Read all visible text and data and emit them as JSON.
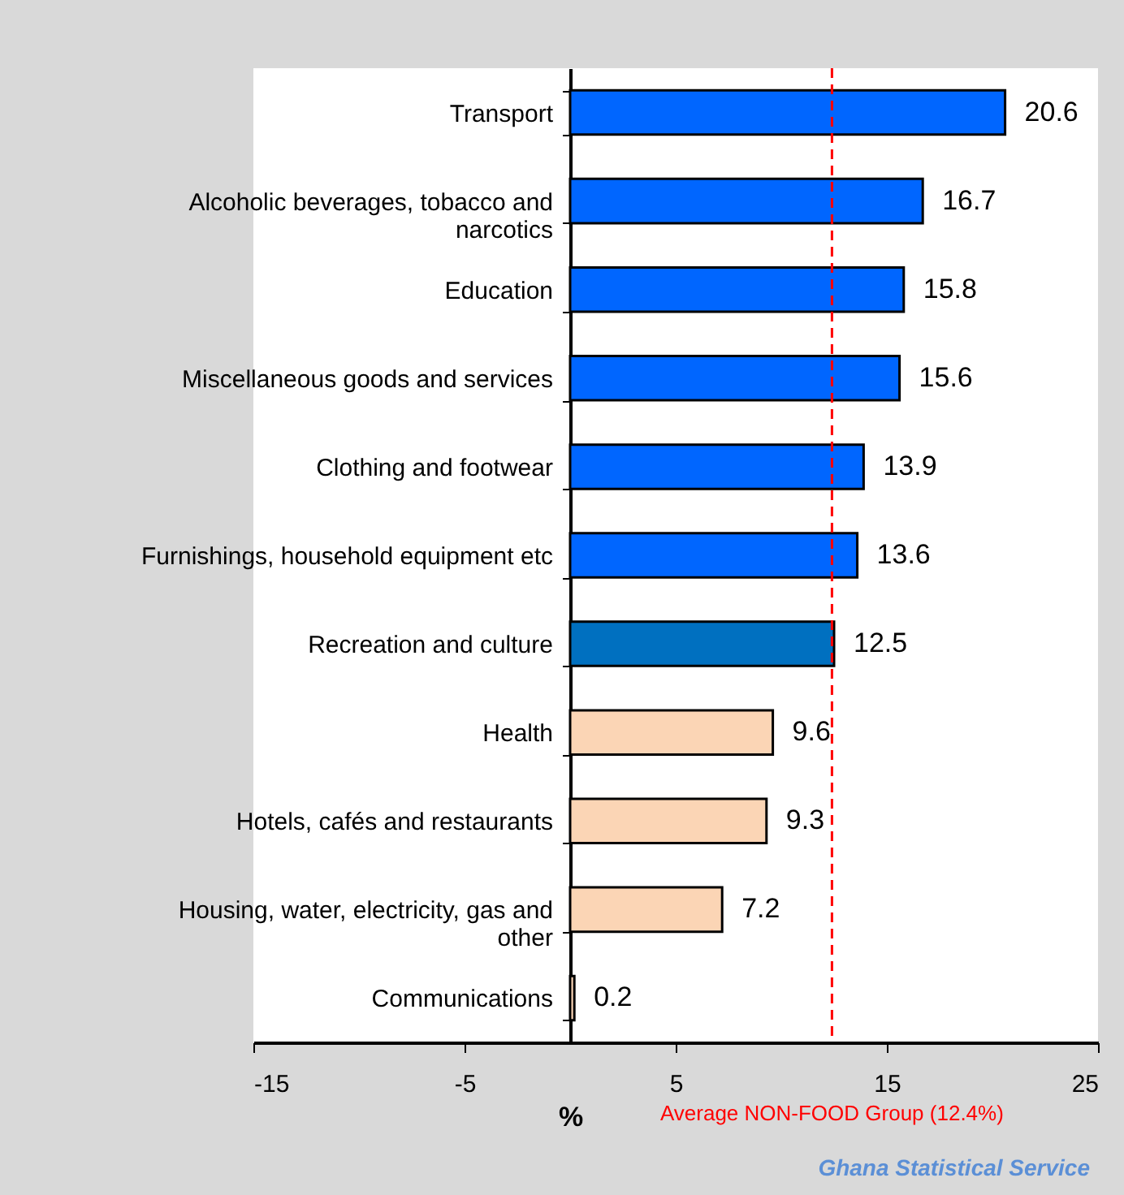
{
  "chart_data": {
    "type": "bar",
    "orientation": "horizontal",
    "categories": [
      "Transport",
      "Alcoholic beverages, tobacco and narcotics",
      "Education",
      "Miscellaneous goods and services",
      "Clothing and footwear",
      "Furnishings, household equipment etc",
      "Recreation and culture",
      "Health",
      "Hotels, cafés and restaurants",
      "Housing, water, electricity, gas and other",
      "Communications"
    ],
    "values": [
      20.6,
      16.7,
      15.8,
      15.6,
      13.9,
      13.6,
      12.5,
      9.6,
      9.3,
      7.2,
      0.2
    ],
    "colors": [
      "#0066ff",
      "#0066ff",
      "#0066ff",
      "#0066ff",
      "#0066ff",
      "#0066ff",
      "#0070c0",
      "#fbd5b5",
      "#fbd5b5",
      "#fbd5b5",
      "#fbd5b5"
    ],
    "xlabel": "%",
    "xlim": [
      -15,
      25
    ],
    "xticks": [
      -15,
      -5,
      5,
      15,
      25
    ],
    "data_labels": true,
    "grid": false,
    "ref_lines": [
      {
        "axis": "x",
        "value": 12.4,
        "label": "Average  NON-FOOD Group (12.4%)",
        "color": "#ff0000",
        "line_style": "dashed"
      }
    ],
    "annotations": [
      "Ghana Statistical Service"
    ]
  }
}
